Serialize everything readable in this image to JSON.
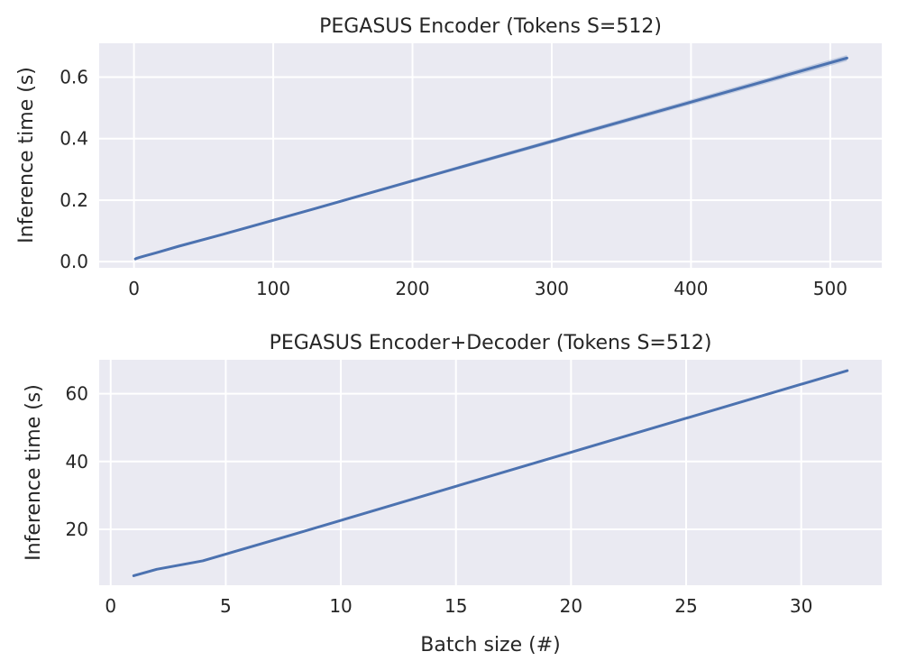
{
  "chart_data": [
    {
      "type": "line",
      "title": "PEGASUS Encoder (Tokens S=512)",
      "xlabel": "",
      "ylabel": "Inference time (s)",
      "xlim": [
        -25,
        537
      ],
      "ylim": [
        -0.02,
        0.71
      ],
      "xticks": [
        0,
        100,
        200,
        300,
        400,
        500
      ],
      "xtick_labels": [
        "0",
        "100",
        "200",
        "300",
        "400",
        "500"
      ],
      "yticks": [
        0.0,
        0.2,
        0.4,
        0.6
      ],
      "ytick_labels": [
        "0.0",
        "0.2",
        "0.4",
        "0.6"
      ],
      "grid": true,
      "series": [
        {
          "color": "#4c72b0",
          "x": [
            1,
            2,
            4,
            8,
            16,
            32,
            64,
            128,
            256,
            512
          ],
          "y": [
            0.009,
            0.011,
            0.014,
            0.019,
            0.029,
            0.05,
            0.089,
            0.17,
            0.335,
            0.662
          ],
          "ci_low": [
            0.008,
            0.01,
            0.013,
            0.018,
            0.028,
            0.048,
            0.087,
            0.166,
            0.329,
            0.652
          ],
          "ci_high": [
            0.01,
            0.012,
            0.015,
            0.02,
            0.03,
            0.052,
            0.091,
            0.174,
            0.341,
            0.672
          ]
        }
      ]
    },
    {
      "type": "line",
      "title": "PEGASUS Encoder+Decoder (Tokens S=512)",
      "xlabel": "Batch size (#)",
      "ylabel": "Inference time (s)",
      "xlim": [
        -0.5,
        33.5
      ],
      "ylim": [
        3.5,
        70
      ],
      "xticks": [
        0,
        5,
        10,
        15,
        20,
        25,
        30
      ],
      "xtick_labels": [
        "0",
        "5",
        "10",
        "15",
        "20",
        "25",
        "30"
      ],
      "yticks": [
        20,
        40,
        60
      ],
      "ytick_labels": [
        "20",
        "40",
        "60"
      ],
      "grid": true,
      "series": [
        {
          "color": "#4c72b0",
          "x": [
            1,
            2,
            4,
            8,
            16,
            32
          ],
          "y": [
            6.3,
            8.2,
            10.7,
            18.6,
            34.7,
            66.8
          ]
        }
      ]
    }
  ]
}
